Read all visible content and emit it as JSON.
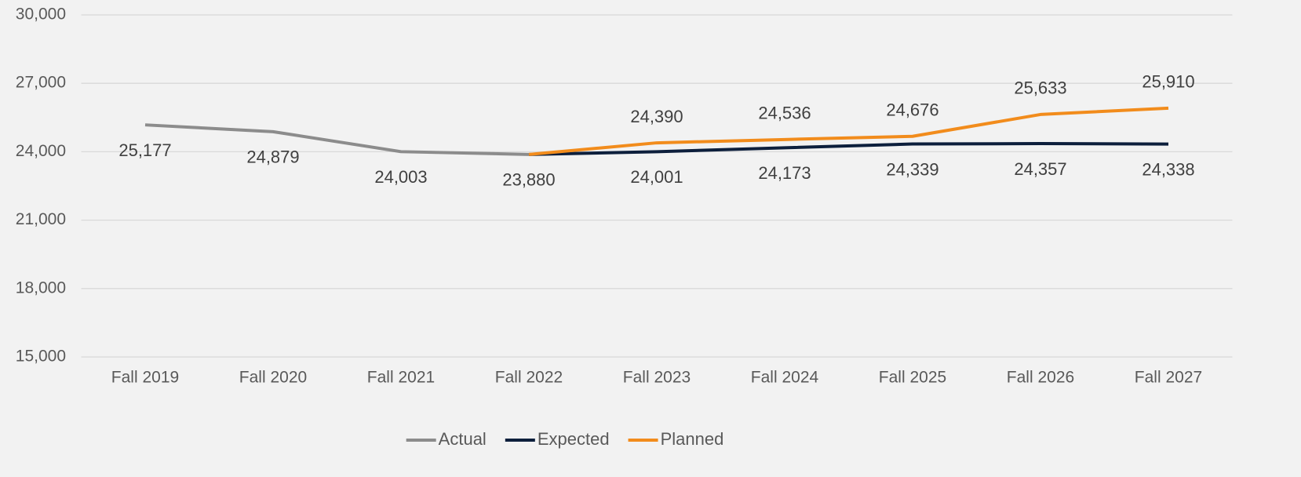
{
  "chart_data": {
    "type": "line",
    "categories": [
      "Fall 2019",
      "Fall 2020",
      "Fall 2021",
      "Fall 2022",
      "Fall 2023",
      "Fall 2024",
      "Fall 2025",
      "Fall 2026",
      "Fall 2027"
    ],
    "series": [
      {
        "name": "Actual",
        "color": "#8c8c8c",
        "label_position": "below",
        "values": [
          25177,
          24879,
          24003,
          23880,
          null,
          null,
          null,
          null,
          null
        ],
        "value_labels": [
          "25,177",
          "24,879",
          "24,003",
          "23,880",
          null,
          null,
          null,
          null,
          null
        ]
      },
      {
        "name": "Expected",
        "color": "#0d1f3c",
        "label_position": "below",
        "values": [
          null,
          null,
          null,
          23880,
          24001,
          24173,
          24339,
          24357,
          24338
        ],
        "value_labels": [
          null,
          null,
          null,
          null,
          "24,001",
          "24,173",
          "24,339",
          "24,357",
          "24,338"
        ]
      },
      {
        "name": "Planned",
        "color": "#f28c1c",
        "label_position": "above",
        "values": [
          null,
          null,
          null,
          23880,
          24390,
          24536,
          24676,
          25633,
          25910
        ],
        "value_labels": [
          null,
          null,
          null,
          null,
          "24,390",
          "24,536",
          "24,676",
          "25,633",
          "25,910"
        ]
      }
    ],
    "ylim": [
      15000,
      30000
    ],
    "yticks": [
      {
        "value": 15000,
        "label": "15,000"
      },
      {
        "value": 18000,
        "label": "18,000"
      },
      {
        "value": 21000,
        "label": "21,000"
      },
      {
        "value": 24000,
        "label": "24,000"
      },
      {
        "value": 27000,
        "label": "27,000"
      },
      {
        "value": 30000,
        "label": "30,000"
      }
    ],
    "grid": true,
    "legend": "bottom"
  }
}
